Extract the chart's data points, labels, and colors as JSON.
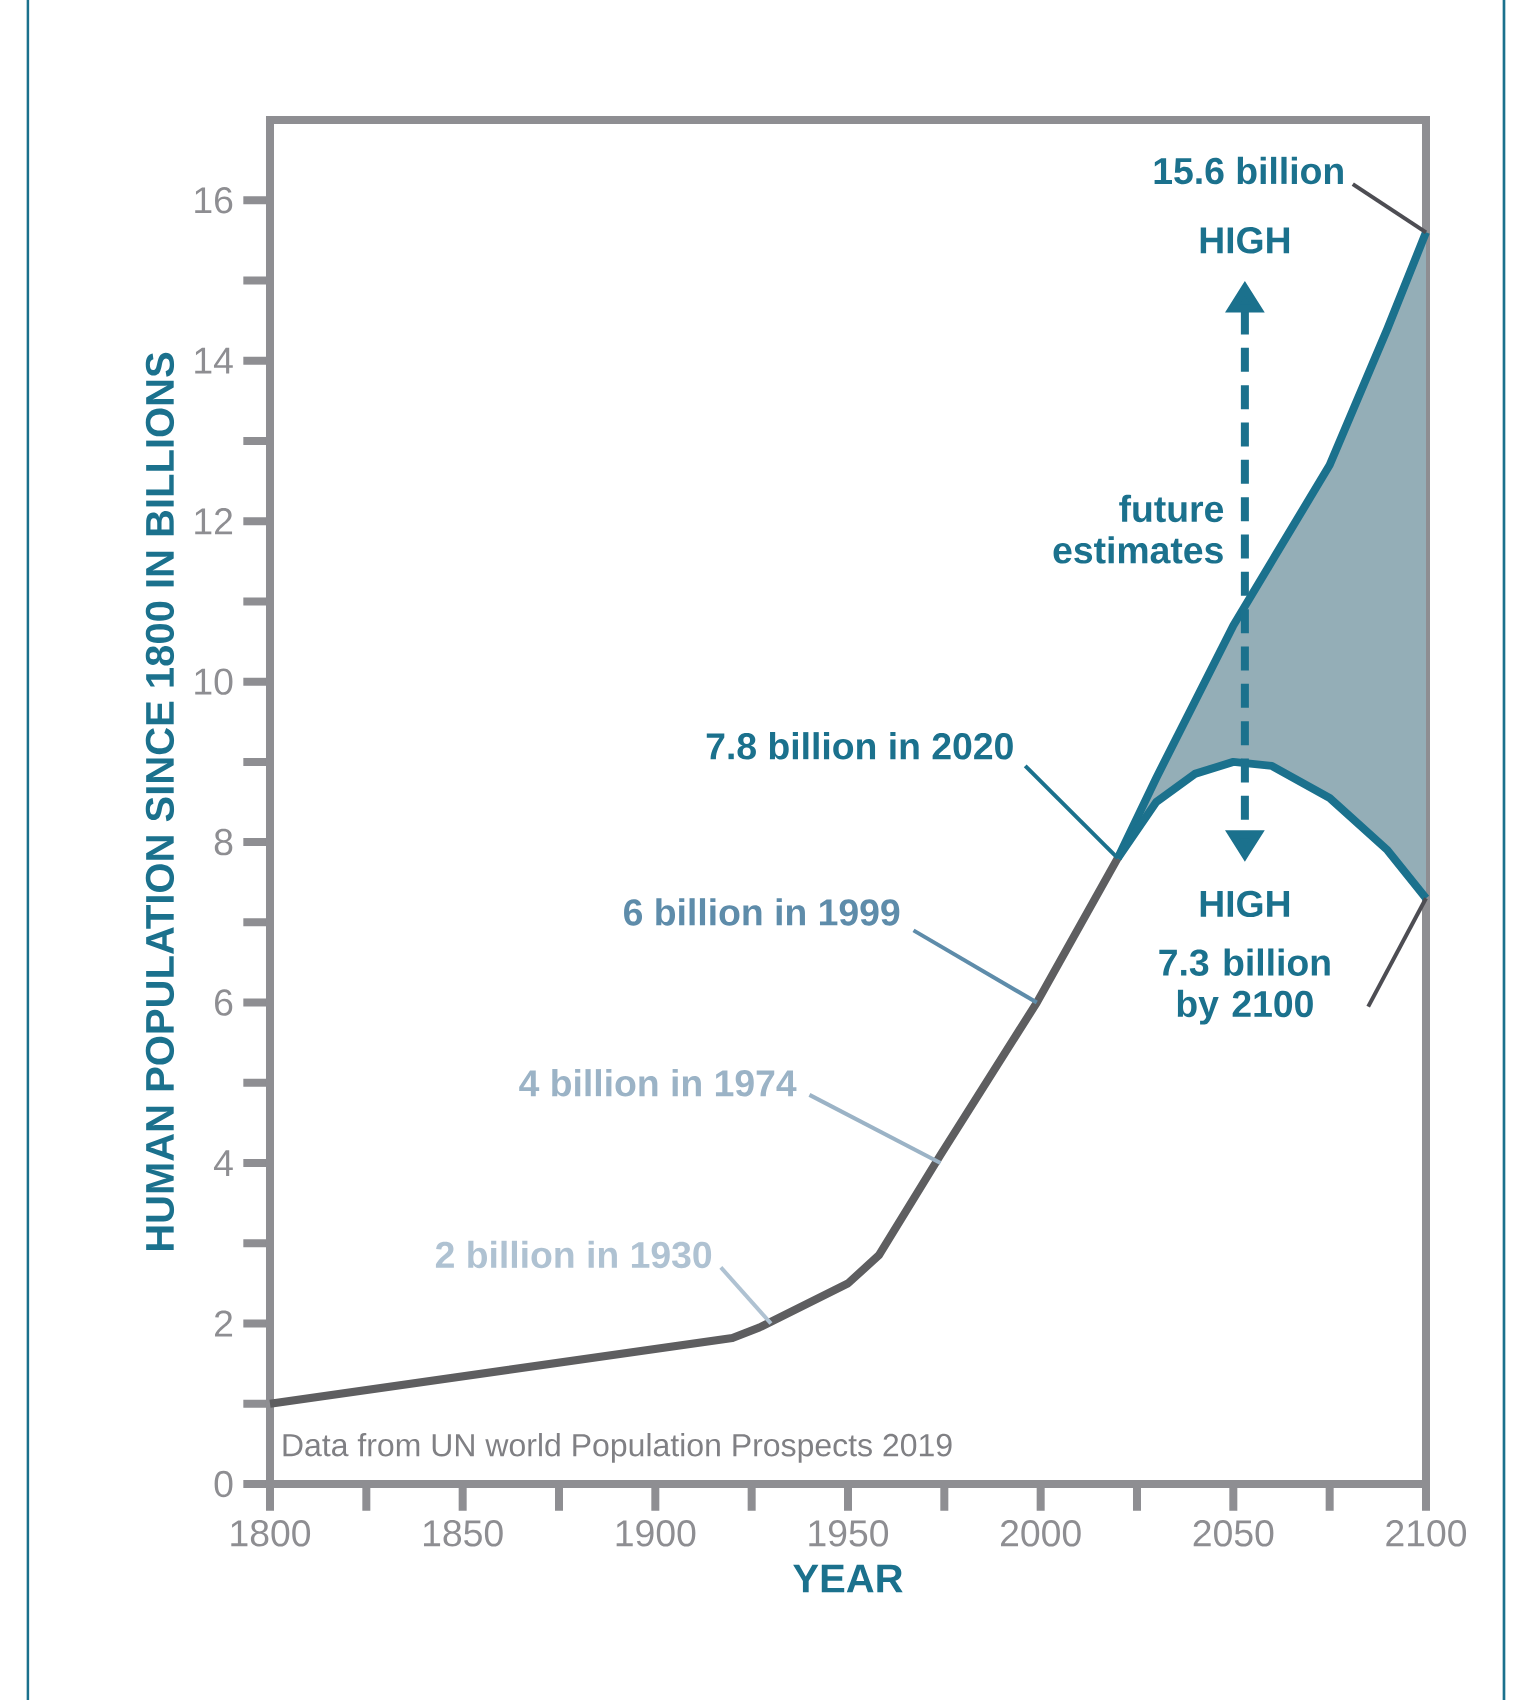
{
  "chart_data": {
    "type": "line",
    "xlabel": "YEAR",
    "ylabel": "HUMAN POPULATION SINCE 1800 IN BILLIONS",
    "xlim": [
      1800,
      2100
    ],
    "xticks": [
      1800,
      {
        "value": 1825,
        "label": null
      },
      1850,
      {
        "value": 1875,
        "label": null
      },
      1900,
      {
        "value": 1925,
        "label": null
      },
      1950,
      {
        "value": 1975,
        "label": null
      },
      2000,
      {
        "value": 2025,
        "label": null
      },
      2050,
      {
        "value": 2075,
        "label": null
      },
      2100
    ],
    "ylim": [
      0,
      17
    ],
    "yticks": [
      0,
      {
        "value": 1,
        "label": null
      },
      2,
      {
        "value": 3,
        "label": null
      },
      4,
      {
        "value": 5,
        "label": null
      },
      6,
      {
        "value": 7,
        "label": null
      },
      8,
      {
        "value": 9,
        "label": null
      },
      10,
      {
        "value": 11,
        "label": null
      },
      12,
      {
        "value": 13,
        "label": null
      },
      14,
      {
        "value": 15,
        "label": null
      },
      16
    ],
    "marker": "none",
    "line_style": "solid",
    "series": [
      {
        "color": "#5e5e60",
        "x": [
          1800,
          1920,
          1927,
          1950,
          1958,
          1974,
          1999,
          2020
        ],
        "values": [
          1.0,
          1.82,
          1.95,
          2.5,
          2.85,
          4.1,
          6.0,
          7.8
        ]
      },
      {
        "color": "#1b718d",
        "x": [
          2020,
          2030,
          2040,
          2050,
          2060,
          2075,
          2090,
          2100
        ],
        "values": [
          7.8,
          8.8,
          9.75,
          10.7,
          11.5,
          12.7,
          14.4,
          15.6
        ],
        "lower": [
          7.8,
          8.5,
          8.85,
          9.0,
          8.95,
          8.55,
          7.9,
          7.3
        ],
        "upper": [
          7.8,
          8.8,
          9.75,
          10.7,
          11.5,
          12.7,
          14.4,
          15.6
        ]
      },
      {
        "color": "#1b718d",
        "x": [
          2020,
          2030,
          2040,
          2050,
          2060,
          2075,
          2090,
          2100
        ],
        "values": [
          7.8,
          8.5,
          8.85,
          9.0,
          8.95,
          8.55,
          7.9,
          7.3
        ]
      }
    ],
    "annotations": [
      {
        "text": "15.6 billion",
        "x": 2100,
        "y": 15.6
      },
      "HIGH",
      "future estimates",
      "HIGH",
      {
        "text": "7.3 billion by 2100",
        "x": 2100,
        "y": 7.3
      },
      {
        "text": "7.8 billion in 2020",
        "x": 2020,
        "y": 7.8
      },
      {
        "text": "6 billion in 1999",
        "x": 1999,
        "y": 6
      },
      {
        "text": "4 billion in 1974",
        "x": 1974,
        "y": 4
      },
      {
        "text": "2 billion in 1930",
        "x": 1930,
        "y": 2
      },
      "Data from UN world Population Prospects 2019"
    ]
  }
}
